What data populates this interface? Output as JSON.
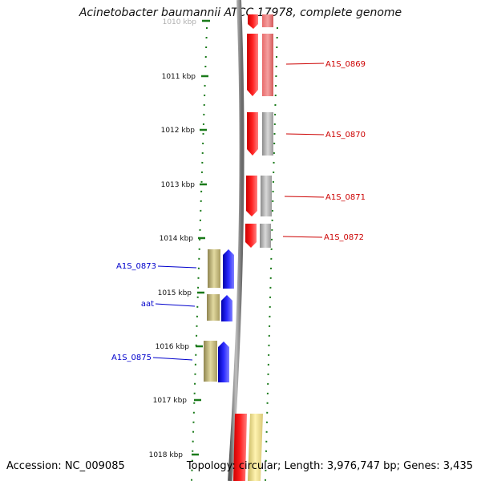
{
  "title": "Acinetobacter baumannii ATCC 17978, complete genome",
  "footer": {
    "accession": "Accession: NC_009085",
    "summary": "Topology: circular; Length: 3,976,747 bp; Genes: 3,435"
  },
  "ticks": [
    "1010 kbp",
    "1011 kbp",
    "1012 kbp",
    "1013 kbp",
    "1014 kbp",
    "1015 kbp",
    "1016 kbp",
    "1017 kbp",
    "1018 kbp"
  ],
  "labels": {
    "right": [
      "A1S_0869",
      "A1S_0870",
      "A1S_0871",
      "A1S_0872"
    ],
    "left": [
      "A1S_0873",
      "aat",
      "A1S_0875"
    ]
  },
  "colors": {
    "forward_gene": "#ff0000",
    "reverse_gene": "#0000ff",
    "right_label": "#cc0000",
    "left_label": "#0000cc",
    "tick": "#1a7a1a",
    "backbone": "#808080"
  }
}
